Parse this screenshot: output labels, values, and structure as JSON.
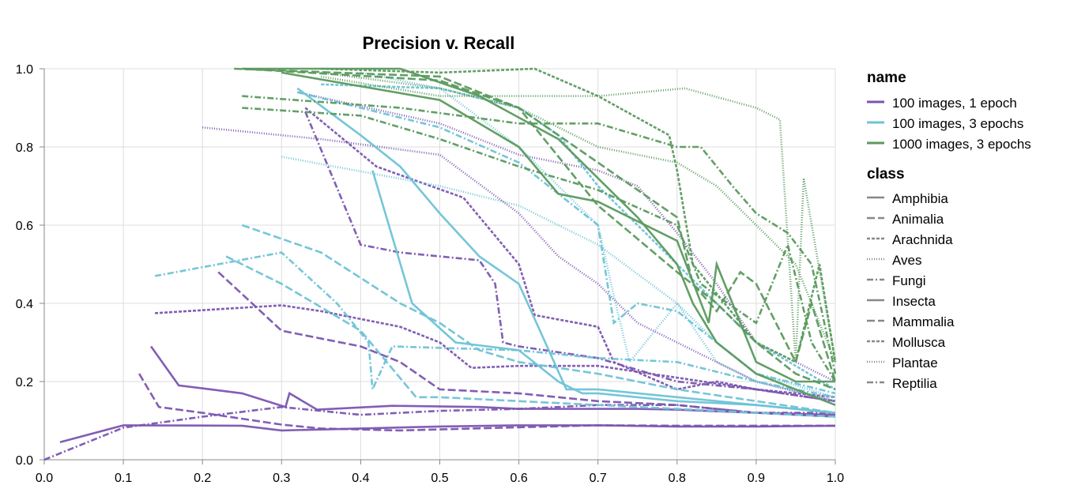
{
  "chart_data": {
    "type": "line",
    "title": "Precision v. Recall",
    "xlabel": "",
    "ylabel": "",
    "xlim": [
      0,
      1
    ],
    "ylim": [
      0,
      1
    ],
    "x_ticks": [
      "0.0",
      "0.1",
      "0.2",
      "0.3",
      "0.4",
      "0.5",
      "0.6",
      "0.7",
      "0.8",
      "0.9",
      "1.0"
    ],
    "y_ticks": [
      "0.0",
      "0.2",
      "0.4",
      "0.6",
      "0.8",
      "1.0"
    ],
    "grid": true,
    "legend_placement": "right",
    "legend": {
      "name_title": "name",
      "names": [
        {
          "label": "100 images, 1 epoch",
          "color": "#7b55b0"
        },
        {
          "label": "100 images, 3 epochs",
          "color": "#6ec3d6"
        },
        {
          "label": "1000 images, 3 epochs",
          "color": "#5a9a5e"
        }
      ],
      "class_title": "class",
      "classes": [
        {
          "label": "Amphibia",
          "dash": ""
        },
        {
          "label": "Animalia",
          "dash": "10,4"
        },
        {
          "label": "Arachnida",
          "dash": "4,2"
        },
        {
          "label": "Aves",
          "dash": "1,2"
        },
        {
          "label": "Fungi",
          "dash": "8,3,2,3"
        },
        {
          "label": "Insecta",
          "dash": ""
        },
        {
          "label": "Mammalia",
          "dash": "10,4"
        },
        {
          "label": "Mollusca",
          "dash": "4,2"
        },
        {
          "label": "Plantae",
          "dash": "1,2"
        },
        {
          "label": "Reptilia",
          "dash": "8,3,2,3"
        }
      ]
    },
    "series": [
      {
        "name": "100 images, 1 epoch",
        "class": "Amphibia",
        "x": [
          0.02,
          0.1,
          0.25,
          0.3,
          0.4,
          0.5,
          0.6,
          0.7,
          0.8,
          0.9,
          1.0
        ],
        "y": [
          0.045,
          0.088,
          0.087,
          0.075,
          0.08,
          0.085,
          0.088,
          0.088,
          0.085,
          0.085,
          0.087
        ]
      },
      {
        "name": "100 images, 1 epoch",
        "class": "Insecta",
        "x": [
          0.135,
          0.17,
          0.25,
          0.305,
          0.31,
          0.345,
          0.44,
          0.55,
          0.6,
          0.75,
          0.8,
          0.9,
          1.0
        ],
        "y": [
          0.29,
          0.19,
          0.17,
          0.135,
          0.17,
          0.128,
          0.138,
          0.135,
          0.13,
          0.13,
          0.128,
          0.12,
          0.115
        ]
      },
      {
        "name": "100 images, 1 epoch",
        "class": "Mammalia",
        "x": [
          0.12,
          0.145,
          0.2,
          0.3,
          0.35,
          0.45,
          0.6,
          0.7,
          0.8,
          0.9,
          1.0
        ],
        "y": [
          0.22,
          0.135,
          0.12,
          0.09,
          0.08,
          0.075,
          0.083,
          0.088,
          0.087,
          0.087,
          0.087
        ]
      },
      {
        "name": "100 images, 1 epoch",
        "class": "Reptilia",
        "x": [
          0.0,
          0.1,
          0.2,
          0.3,
          0.4,
          0.5,
          0.6,
          0.7,
          0.8,
          0.9,
          1.0
        ],
        "y": [
          0.0,
          0.082,
          0.11,
          0.135,
          0.115,
          0.125,
          0.13,
          0.14,
          0.14,
          0.12,
          0.12
        ]
      },
      {
        "name": "100 images, 1 epoch",
        "class": "Animalia",
        "x": [
          0.22,
          0.3,
          0.4,
          0.45,
          0.5,
          0.6,
          0.7,
          0.8,
          0.9,
          1.0
        ],
        "y": [
          0.48,
          0.33,
          0.29,
          0.25,
          0.18,
          0.17,
          0.15,
          0.14,
          0.12,
          0.11
        ]
      },
      {
        "name": "100 images, 1 epoch",
        "class": "Arachnida",
        "x": [
          0.14,
          0.3,
          0.35,
          0.45,
          0.5,
          0.54,
          0.6,
          0.7,
          0.8,
          0.9,
          1.0
        ],
        "y": [
          0.375,
          0.395,
          0.38,
          0.34,
          0.3,
          0.235,
          0.24,
          0.24,
          0.21,
          0.18,
          0.16
        ]
      },
      {
        "name": "100 images, 1 epoch",
        "class": "Mollusca",
        "x": [
          0.33,
          0.42,
          0.53,
          0.6,
          0.62,
          0.7,
          0.72,
          0.8,
          0.85,
          0.9,
          1.0
        ],
        "y": [
          0.9,
          0.75,
          0.67,
          0.5,
          0.37,
          0.34,
          0.25,
          0.18,
          0.2,
          0.18,
          0.15
        ]
      },
      {
        "name": "100 images, 1 epoch",
        "class": "Fungi",
        "x": [
          0.33,
          0.4,
          0.45,
          0.55,
          0.57,
          0.58,
          0.6,
          0.7,
          0.8,
          0.9,
          1.0
        ],
        "y": [
          0.89,
          0.55,
          0.53,
          0.51,
          0.45,
          0.3,
          0.29,
          0.26,
          0.2,
          0.18,
          0.15
        ]
      },
      {
        "name": "100 images, 1 epoch",
        "class": "Aves",
        "x": [
          0.2,
          0.35,
          0.5,
          0.6,
          0.65,
          0.7,
          0.75,
          0.8,
          0.9,
          1.0
        ],
        "y": [
          0.85,
          0.82,
          0.78,
          0.63,
          0.52,
          0.45,
          0.35,
          0.3,
          0.2,
          0.15
        ]
      },
      {
        "name": "100 images, 1 epoch",
        "class": "Plantae",
        "x": [
          0.32,
          0.5,
          0.6,
          0.7,
          0.75,
          0.8,
          0.85,
          0.9,
          1.0
        ],
        "y": [
          0.94,
          0.86,
          0.78,
          0.74,
          0.7,
          0.58,
          0.45,
          0.3,
          0.2
        ]
      },
      {
        "name": "100 images, 3 epochs",
        "class": "Amphibia",
        "x": [
          0.32,
          0.4,
          0.45,
          0.5,
          0.55,
          0.6,
          0.66,
          0.7,
          0.8,
          0.9,
          1.0
        ],
        "y": [
          0.95,
          0.83,
          0.75,
          0.63,
          0.52,
          0.45,
          0.18,
          0.18,
          0.16,
          0.14,
          0.12
        ]
      },
      {
        "name": "100 images, 3 epochs",
        "class": "Insecta",
        "x": [
          0.415,
          0.465,
          0.52,
          0.6,
          0.65,
          0.68,
          0.7,
          0.8,
          0.9,
          1.0
        ],
        "y": [
          0.74,
          0.4,
          0.3,
          0.28,
          0.2,
          0.17,
          0.17,
          0.15,
          0.14,
          0.12
        ]
      },
      {
        "name": "100 images, 3 epochs",
        "class": "Animalia",
        "x": [
          0.25,
          0.35,
          0.45,
          0.5,
          0.55,
          0.6,
          0.7,
          0.8,
          0.9,
          1.0
        ],
        "y": [
          0.6,
          0.53,
          0.4,
          0.35,
          0.28,
          0.25,
          0.22,
          0.18,
          0.15,
          0.12
        ]
      },
      {
        "name": "100 images, 3 epochs",
        "class": "Mammalia",
        "x": [
          0.23,
          0.3,
          0.4,
          0.47,
          0.5,
          0.6,
          0.7,
          0.8,
          0.9,
          1.0
        ],
        "y": [
          0.52,
          0.45,
          0.33,
          0.16,
          0.16,
          0.15,
          0.14,
          0.13,
          0.12,
          0.11
        ]
      },
      {
        "name": "100 images, 3 epochs",
        "class": "Fungi",
        "x": [
          0.14,
          0.3,
          0.37,
          0.41,
          0.415,
          0.44,
          0.6,
          0.7,
          0.8,
          0.9,
          1.0
        ],
        "y": [
          0.47,
          0.53,
          0.4,
          0.3,
          0.18,
          0.29,
          0.28,
          0.26,
          0.25,
          0.2,
          0.16
        ]
      },
      {
        "name": "100 images, 3 epochs",
        "class": "Plantae",
        "x": [
          0.3,
          0.5,
          0.6,
          0.7,
          0.8,
          0.85,
          0.9,
          1.0
        ],
        "y": [
          0.775,
          0.7,
          0.65,
          0.55,
          0.4,
          0.3,
          0.22,
          0.16
        ]
      },
      {
        "name": "100 images, 3 epochs",
        "class": "Reptilia",
        "x": [
          0.32,
          0.5,
          0.6,
          0.7,
          0.72,
          0.75,
          0.8,
          0.9,
          1.0
        ],
        "y": [
          0.94,
          0.85,
          0.76,
          0.6,
          0.35,
          0.4,
          0.38,
          0.22,
          0.17
        ]
      },
      {
        "name": "100 images, 3 epochs",
        "class": "Arachnida",
        "x": [
          0.35,
          0.5,
          0.6,
          0.65,
          0.7,
          0.75,
          0.8,
          0.9,
          1.0
        ],
        "y": [
          0.96,
          0.95,
          0.9,
          0.83,
          0.7,
          0.6,
          0.5,
          0.3,
          0.18
        ]
      },
      {
        "name": "100 images, 3 epochs",
        "class": "Aves",
        "x": [
          0.4,
          0.5,
          0.6,
          0.7,
          0.72,
          0.74,
          0.8,
          0.85,
          0.9,
          1.0
        ],
        "y": [
          0.99,
          0.95,
          0.8,
          0.6,
          0.42,
          0.25,
          0.4,
          0.25,
          0.2,
          0.15
        ]
      },
      {
        "name": "1000 images, 3 epochs",
        "class": "Amphibia",
        "x": [
          0.25,
          0.45,
          0.55,
          0.65,
          0.7,
          0.75,
          0.8,
          0.82,
          0.85,
          0.9,
          0.95,
          1.0
        ],
        "y": [
          1.0,
          1.0,
          0.93,
          0.82,
          0.72,
          0.62,
          0.5,
          0.4,
          0.3,
          0.22,
          0.18,
          0.14
        ]
      },
      {
        "name": "1000 images, 3 epochs",
        "class": "Insecta",
        "x": [
          0.3,
          0.5,
          0.6,
          0.65,
          0.7,
          0.8,
          0.84,
          0.85,
          0.9,
          0.95,
          1.0
        ],
        "y": [
          0.99,
          0.92,
          0.8,
          0.68,
          0.66,
          0.56,
          0.35,
          0.5,
          0.25,
          0.2,
          0.2
        ]
      },
      {
        "name": "1000 images, 3 epochs",
        "class": "Animalia",
        "x": [
          0.24,
          0.5,
          0.6,
          0.7,
          0.8,
          0.82,
          0.85,
          0.88,
          0.9,
          0.95,
          0.97,
          1.0
        ],
        "y": [
          1.0,
          0.98,
          0.9,
          0.76,
          0.62,
          0.45,
          0.38,
          0.48,
          0.45,
          0.25,
          0.4,
          0.2
        ]
      },
      {
        "name": "1000 images, 3 epochs",
        "class": "Mammalia",
        "x": [
          0.25,
          0.5,
          0.6,
          0.7,
          0.8,
          0.85,
          0.9,
          0.95,
          1.0
        ],
        "y": [
          1.0,
          0.97,
          0.9,
          0.65,
          0.48,
          0.4,
          0.3,
          0.22,
          0.18
        ]
      },
      {
        "name": "1000 images, 3 epochs",
        "class": "Fungi",
        "x": [
          0.25,
          0.4,
          0.5,
          0.6,
          0.7,
          0.8,
          0.83,
          0.85,
          0.9,
          0.94,
          0.97,
          1.0
        ],
        "y": [
          0.9,
          0.88,
          0.82,
          0.75,
          0.69,
          0.6,
          0.45,
          0.42,
          0.35,
          0.55,
          0.3,
          0.2
        ]
      },
      {
        "name": "1000 images, 3 epochs",
        "class": "Reptilia",
        "x": [
          0.25,
          0.45,
          0.6,
          0.7,
          0.8,
          0.83,
          0.87,
          0.9,
          0.94,
          0.97,
          1.0
        ],
        "y": [
          0.93,
          0.9,
          0.86,
          0.86,
          0.8,
          0.8,
          0.7,
          0.63,
          0.58,
          0.5,
          0.22
        ]
      },
      {
        "name": "1000 images, 3 epochs",
        "class": "Arachnida",
        "x": [
          0.35,
          0.5,
          0.62,
          0.7,
          0.79,
          0.8,
          0.82,
          0.9,
          0.95,
          0.98,
          1.0
        ],
        "y": [
          1.0,
          0.99,
          1.0,
          0.93,
          0.83,
          0.74,
          0.5,
          0.3,
          0.25,
          0.5,
          0.25
        ]
      },
      {
        "name": "1000 images, 3 epochs",
        "class": "Plantae",
        "x": [
          0.35,
          0.5,
          0.6,
          0.7,
          0.81,
          0.9,
          0.93,
          0.95,
          0.96,
          1.0
        ],
        "y": [
          0.98,
          0.93,
          0.93,
          0.93,
          0.95,
          0.9,
          0.87,
          0.25,
          0.72,
          0.25
        ]
      },
      {
        "name": "1000 images, 3 epochs",
        "class": "Aves",
        "x": [
          0.35,
          0.5,
          0.6,
          0.7,
          0.8,
          0.85,
          0.9,
          0.95,
          0.97,
          1.0
        ],
        "y": [
          0.99,
          0.95,
          0.9,
          0.8,
          0.76,
          0.7,
          0.6,
          0.5,
          0.4,
          0.25
        ]
      }
    ]
  }
}
